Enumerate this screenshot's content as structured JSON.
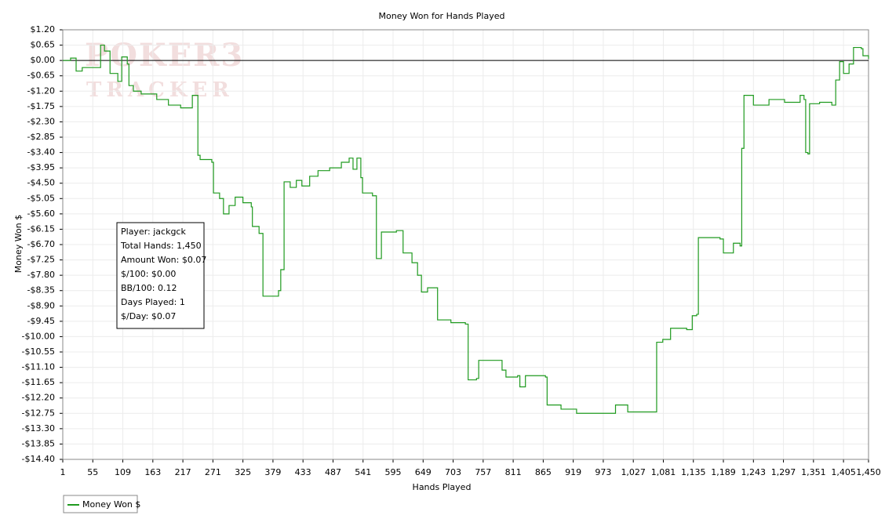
{
  "chart_data": {
    "type": "line",
    "title": "Money Won for Hands Played",
    "x_label": "Hands Played",
    "y_label": "Money Won $",
    "watermark": [
      "POKER3",
      "TRACKER"
    ],
    "info_box": [
      "Player: jackgck",
      "Total Hands: 1,450",
      "Amount Won: $0.07",
      "$/100: $0.00",
      "BB/100: 0.12",
      "Days Played: 1",
      "$/Day: $0.07"
    ],
    "step": true,
    "grid": true,
    "reference_line": 0,
    "legend": "bottom-left",
    "xlim": [
      1,
      1450
    ],
    "xticks": [
      1,
      55,
      109,
      163,
      217,
      271,
      325,
      379,
      433,
      487,
      541,
      595,
      649,
      703,
      757,
      811,
      865,
      919,
      973,
      {
        "value": 1027,
        "label": "1,027"
      },
      {
        "value": 1081,
        "label": "1,081"
      },
      {
        "value": 1135,
        "label": "1,135"
      },
      {
        "value": 1189,
        "label": "1,189"
      },
      {
        "value": 1243,
        "label": "1,243"
      },
      {
        "value": 1297,
        "label": "1,297"
      },
      {
        "value": 1351,
        "label": "1,351"
      },
      {
        "value": 1405,
        "label": "1,405"
      },
      {
        "value": 1450,
        "label": "1,450"
      }
    ],
    "ylim": [
      -14.4,
      1.2
    ],
    "yticks": [
      {
        "value": 1.2,
        "label": "$1.20"
      },
      {
        "value": 0.65,
        "label": "$0.65"
      },
      {
        "value": 0,
        "label": "$0.00"
      },
      {
        "value": -0.65,
        "label": "-$0.65"
      },
      {
        "value": -1.2,
        "label": "-$1.20"
      },
      {
        "value": -1.75,
        "label": "-$1.75"
      },
      {
        "value": -2.3,
        "label": "-$2.30"
      },
      {
        "value": -2.85,
        "label": "-$2.85"
      },
      {
        "value": -3.4,
        "label": "-$3.40"
      },
      {
        "value": -3.95,
        "label": "-$3.95"
      },
      {
        "value": -4.5,
        "label": "-$4.50"
      },
      {
        "value": -5.05,
        "label": "-$5.05"
      },
      {
        "value": -5.6,
        "label": "-$5.60"
      },
      {
        "value": -6.15,
        "label": "-$6.15"
      },
      {
        "value": -6.7,
        "label": "-$6.70"
      },
      {
        "value": -7.25,
        "label": "-$7.25"
      },
      {
        "value": -7.8,
        "label": "-$7.80"
      },
      {
        "value": -8.35,
        "label": "-$8.35"
      },
      {
        "value": -8.9,
        "label": "-$8.90"
      },
      {
        "value": -9.45,
        "label": "-$9.45"
      },
      {
        "value": -10,
        "label": "-$10.00"
      },
      {
        "value": -10.55,
        "label": "-$10.55"
      },
      {
        "value": -11.1,
        "label": "-$11.10"
      },
      {
        "value": -11.65,
        "label": "-$11.65"
      },
      {
        "value": -12.2,
        "label": "-$12.20"
      },
      {
        "value": -12.75,
        "label": "-$12.75"
      },
      {
        "value": -13.3,
        "label": "-$13.30"
      },
      {
        "value": -13.85,
        "label": "-$13.85"
      },
      {
        "value": -14.4,
        "label": "-$14.40"
      }
    ],
    "x": [
      1,
      15,
      25,
      36,
      57,
      69,
      76,
      86,
      100,
      107,
      117,
      120,
      128,
      142,
      170,
      191,
      213,
      234,
      244,
      248,
      269,
      272,
      283,
      290,
      300,
      311,
      325,
      340,
      342,
      354,
      361,
      389,
      393,
      399,
      410,
      421,
      431,
      445,
      460,
      481,
      502,
      516,
      523,
      530,
      537,
      540,
      558,
      565,
      574,
      601,
      613,
      629,
      639,
      646,
      657,
      675,
      699,
      725,
      730,
      745,
      749,
      770,
      791,
      798,
      819,
      823,
      833,
      869,
      872,
      897,
      925,
      960,
      995,
      1017,
      1066,
      1069,
      1080,
      1094,
      1123,
      1133,
      1141,
      1144,
      1183,
      1189,
      1207,
      1219,
      1222,
      1226,
      1243,
      1271,
      1299,
      1320,
      1327,
      1334,
      1337,
      1341,
      1344,
      1362,
      1384,
      1391,
      1398,
      1405,
      1415,
      1423,
      1437,
      1440,
      1450
    ],
    "series": [
      {
        "name": "Money Won $",
        "color": "#1f9a1f",
        "values": [
          0,
          0.1,
          -0.45,
          -0.3,
          -0.3,
          0.65,
          0.4,
          -0.55,
          -0.85,
          0.15,
          -0.15,
          -1.0,
          -1.2,
          -1.3,
          -1.5,
          -1.7,
          -1.8,
          -1.35,
          -3.5,
          -3.65,
          -3.75,
          -4.85,
          -5.05,
          -5.6,
          -5.3,
          -5.0,
          -5.2,
          -5.35,
          -6.05,
          -6.3,
          -8.55,
          -8.35,
          -7.6,
          -4.45,
          -4.65,
          -4.4,
          -4.6,
          -4.25,
          -4.05,
          -3.95,
          -3.75,
          -3.6,
          -4.0,
          -3.6,
          -4.3,
          -4.85,
          -4.95,
          -7.2,
          -6.25,
          -6.2,
          -7.0,
          -7.35,
          -7.8,
          -8.4,
          -8.25,
          -9.4,
          -9.5,
          -9.55,
          -11.55,
          -11.5,
          -10.85,
          -10.85,
          -11.2,
          -11.45,
          -11.4,
          -11.8,
          -11.4,
          -11.45,
          -12.45,
          -12.6,
          -12.75,
          -12.75,
          -12.45,
          -12.7,
          -12.7,
          -10.2,
          -10.1,
          -9.7,
          -9.75,
          -9.25,
          -9.2,
          -6.45,
          -6.5,
          -7.0,
          -6.65,
          -6.75,
          -3.25,
          -1.35,
          -1.7,
          -1.5,
          -1.6,
          -1.6,
          -1.35,
          -1.5,
          -3.4,
          -3.45,
          -1.65,
          -1.6,
          -1.7,
          -0.8,
          -0.05,
          -0.55,
          -0.15,
          0.55,
          0.5,
          0.2,
          0.07
        ]
      }
    ]
  }
}
